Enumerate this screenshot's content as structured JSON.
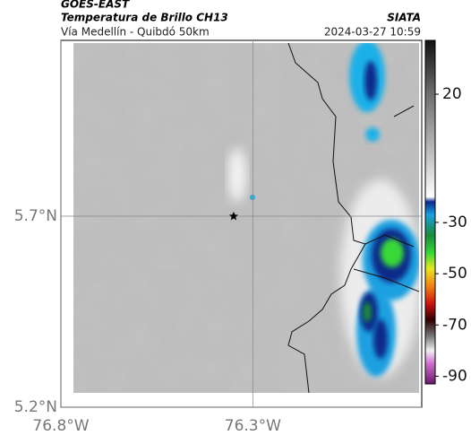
{
  "header": {
    "source": "GOES-EAST",
    "product": "Temperatura de Brillo CH13",
    "agency": "SIATA",
    "route": "Vía Medellín - Quibdó 50km",
    "timestamp": "2024-03-27 10:59"
  },
  "map": {
    "xlim": [
      -76.8,
      -75.86
    ],
    "ylim": [
      5.2,
      6.16
    ],
    "xticks": [
      {
        "value": -76.8,
        "label": "76.8°W"
      },
      {
        "value": -76.3,
        "label": "76.3°W"
      }
    ],
    "yticks": [
      {
        "value": 5.2,
        "label": "5.2°N"
      },
      {
        "value": 5.7,
        "label": "5.7°N"
      }
    ],
    "grid": true,
    "marker": {
      "lon": -76.35,
      "lat": 5.7
    }
  },
  "colorbar": {
    "clim": [
      -93,
      41
    ],
    "ticks": [
      20,
      -30,
      -50,
      -70,
      -90
    ],
    "stops": [
      {
        "value": 41,
        "color": "#111111"
      },
      {
        "value": 20,
        "color": "#6e6e6e"
      },
      {
        "value": -10,
        "color": "#d8d8d8"
      },
      {
        "value": -20,
        "color": "#ffffff"
      },
      {
        "value": -22,
        "color": "#0a2a8a"
      },
      {
        "value": -27,
        "color": "#1aa0e0"
      },
      {
        "value": -35,
        "color": "#1a8a3a"
      },
      {
        "value": -42,
        "color": "#38d838"
      },
      {
        "value": -48,
        "color": "#e8e820"
      },
      {
        "value": -55,
        "color": "#f08010"
      },
      {
        "value": -62,
        "color": "#c81010"
      },
      {
        "value": -68,
        "color": "#300000"
      },
      {
        "value": -74,
        "color": "#707070"
      },
      {
        "value": -80,
        "color": "#f0f0f0"
      },
      {
        "value": -85,
        "color": "#d070d0"
      },
      {
        "value": -93,
        "color": "#6a1a6a"
      }
    ]
  }
}
